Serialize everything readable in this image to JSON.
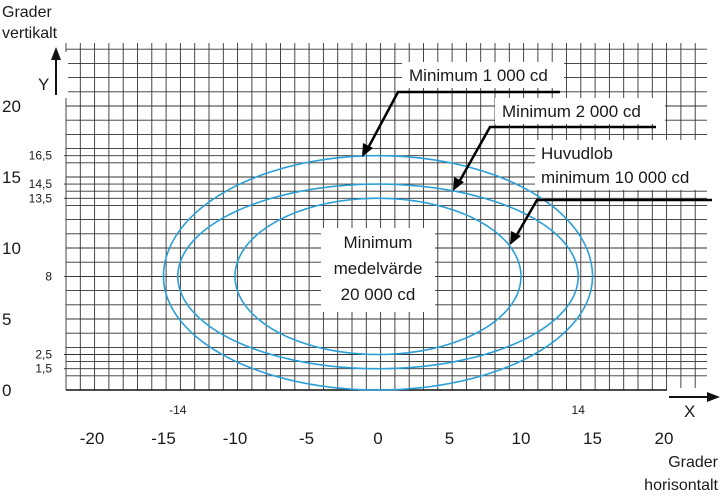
{
  "axes": {
    "y_title_lines": [
      "Grader",
      "vertikalt"
    ],
    "x_title_lines": [
      "Grader",
      "horisontalt"
    ],
    "y_arrow_label": "Y",
    "x_arrow_label": "X",
    "x_ticks": [
      {
        "value": -20,
        "label": "-20"
      },
      {
        "value": -15,
        "label": "-15"
      },
      {
        "value": -10,
        "label": "-10"
      },
      {
        "value": -5,
        "label": "-5"
      },
      {
        "value": 0,
        "label": "0"
      },
      {
        "value": 5,
        "label": "5"
      },
      {
        "value": 10,
        "label": "10"
      },
      {
        "value": 15,
        "label": "15"
      },
      {
        "value": 20,
        "label": "20"
      }
    ],
    "x_extra_ticks": [
      {
        "value": -14,
        "label": "-14"
      },
      {
        "value": 14,
        "label": "14"
      }
    ],
    "y_ticks": [
      {
        "value": 0,
        "label": "0"
      },
      {
        "value": 5,
        "label": "5"
      },
      {
        "value": 10,
        "label": "10"
      },
      {
        "value": 15,
        "label": "15"
      },
      {
        "value": 20,
        "label": "20"
      }
    ],
    "y_extra_ticks": [
      {
        "value": 1.5,
        "label": "1,5"
      },
      {
        "value": 2.5,
        "label": "2,5"
      },
      {
        "value": 8,
        "label": "8"
      },
      {
        "value": 13.5,
        "label": "13,5"
      },
      {
        "value": 14.5,
        "label": "14,5"
      },
      {
        "value": 16.5,
        "label": "16,5"
      }
    ]
  },
  "zones": [
    {
      "name": "Minimum 1 000 cd",
      "x_halfwidth": 15,
      "y_min": 0,
      "y_max": 16.5,
      "y_center": 8
    },
    {
      "name": "Minimum 2 000 cd",
      "x_halfwidth": 14,
      "y_min": 1.5,
      "y_max": 14.5,
      "y_center": 8
    },
    {
      "name": "Huvudlob minimum 10 000 cd",
      "x_halfwidth": 10,
      "y_min": 2.5,
      "y_max": 13.5,
      "y_center": 8
    }
  ],
  "callouts": {
    "min1000": "Minimum 1 000 cd",
    "min2000": "Minimum 2 000 cd",
    "main_lobe_lines": [
      "Huvudlob",
      "minimum 10 000 cd"
    ],
    "center_lines": [
      "Minimum",
      "medelvärde",
      "20 000 cd"
    ]
  },
  "colors": {
    "grid": "#333333",
    "curve": "#2a9fd8",
    "text": "#1a1a1a"
  }
}
